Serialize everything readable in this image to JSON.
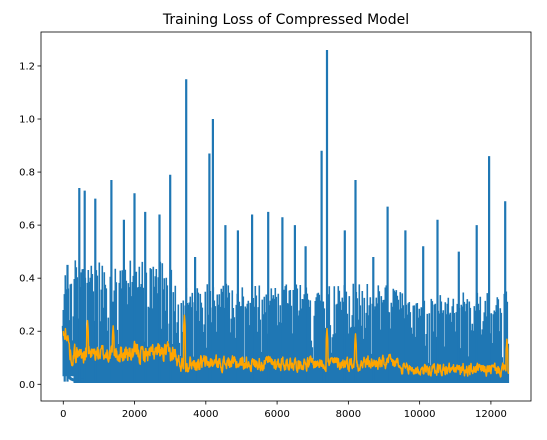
{
  "chart_data": {
    "type": "line",
    "title": "Training Loss of Compressed Model",
    "xlabel": "",
    "ylabel": "",
    "xlim": [
      -625,
      13125
    ],
    "ylim": [
      -0.063,
      1.328
    ],
    "x_ticks": [
      0,
      2000,
      4000,
      6000,
      8000,
      10000,
      12000
    ],
    "y_ticks": [
      0.0,
      0.2,
      0.4,
      0.6,
      0.8,
      1.0,
      1.2
    ],
    "x_tick_labels": [
      "0",
      "2000",
      "4000",
      "6000",
      "8000",
      "10000",
      "12000"
    ],
    "y_tick_labels": [
      "0.0",
      "0.2",
      "0.4",
      "0.6",
      "0.8",
      "1.0",
      "1.2"
    ],
    "grid": false,
    "legend": null,
    "series": [
      {
        "color": "#1f77b4",
        "n_points": 12500,
        "description": "raw per-step loss, noisy; baseline near 0.0–0.02, dense spikes mostly to 0.3–0.5",
        "segments": [
          {
            "x": [
              0,
              300
            ],
            "floor": 0.03,
            "high": 0.45
          },
          {
            "x": [
              300,
              3100
            ],
            "floor": 0.005,
            "high": 0.47
          },
          {
            "x": [
              3100,
              9400
            ],
            "floor": 0.005,
            "high": 0.38
          },
          {
            "x": [
              9400,
              12500
            ],
            "floor": 0.005,
            "high": 0.35
          }
        ],
        "peaks": [
          {
            "x": 40,
            "y": 0.34
          },
          {
            "x": 120,
            "y": 0.45
          },
          {
            "x": 450,
            "y": 0.74
          },
          {
            "x": 600,
            "y": 0.73
          },
          {
            "x": 900,
            "y": 0.7
          },
          {
            "x": 1350,
            "y": 0.77
          },
          {
            "x": 1700,
            "y": 0.62
          },
          {
            "x": 2000,
            "y": 0.72
          },
          {
            "x": 2300,
            "y": 0.65
          },
          {
            "x": 2700,
            "y": 0.64
          },
          {
            "x": 3000,
            "y": 0.79
          },
          {
            "x": 3450,
            "y": 1.15
          },
          {
            "x": 3700,
            "y": 0.48
          },
          {
            "x": 4100,
            "y": 0.87
          },
          {
            "x": 4200,
            "y": 1.0
          },
          {
            "x": 4550,
            "y": 0.6
          },
          {
            "x": 4900,
            "y": 0.58
          },
          {
            "x": 5300,
            "y": 0.64
          },
          {
            "x": 5750,
            "y": 0.65
          },
          {
            "x": 6150,
            "y": 0.63
          },
          {
            "x": 6500,
            "y": 0.6
          },
          {
            "x": 6800,
            "y": 0.52
          },
          {
            "x": 7250,
            "y": 0.88
          },
          {
            "x": 7400,
            "y": 1.26
          },
          {
            "x": 7900,
            "y": 0.58
          },
          {
            "x": 8200,
            "y": 0.77
          },
          {
            "x": 8700,
            "y": 0.48
          },
          {
            "x": 9100,
            "y": 0.67
          },
          {
            "x": 9600,
            "y": 0.58
          },
          {
            "x": 10100,
            "y": 0.52
          },
          {
            "x": 10500,
            "y": 0.62
          },
          {
            "x": 11100,
            "y": 0.5
          },
          {
            "x": 11600,
            "y": 0.6
          },
          {
            "x": 11950,
            "y": 0.86
          },
          {
            "x": 12400,
            "y": 0.69
          }
        ]
      },
      {
        "color": "#ffa500",
        "n_points": 1250,
        "description": "smoothed loss, mostly between 0.05 and 0.25",
        "segments": [
          {
            "x": [
              0,
              150
            ],
            "center": 0.17,
            "amp": 0.05
          },
          {
            "x": [
              150,
              3150
            ],
            "center": 0.115,
            "amp": 0.06
          },
          {
            "x": [
              3150,
              4300
            ],
            "center": 0.08,
            "amp": 0.05
          },
          {
            "x": [
              4300,
              9400
            ],
            "center": 0.08,
            "amp": 0.045
          },
          {
            "x": [
              9400,
              12500
            ],
            "center": 0.055,
            "amp": 0.04
          }
        ],
        "peaks": [
          {
            "x": 60,
            "y": 0.21
          },
          {
            "x": 680,
            "y": 0.24
          },
          {
            "x": 1400,
            "y": 0.22
          },
          {
            "x": 3400,
            "y": 0.26
          },
          {
            "x": 7400,
            "y": 0.21
          },
          {
            "x": 8200,
            "y": 0.19
          },
          {
            "x": 12450,
            "y": 0.17
          }
        ]
      }
    ]
  }
}
